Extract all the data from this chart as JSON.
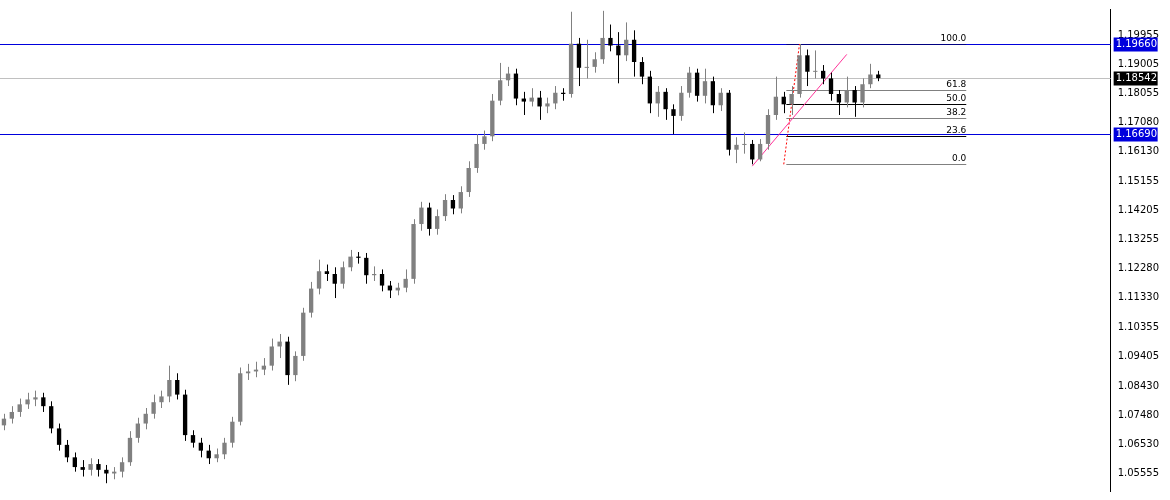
{
  "chart_data": {
    "type": "candlestick",
    "tick_labels": "y",
    "colors": [
      "#808080",
      "#808080",
      "#808080",
      "#808080",
      "#808080",
      "#000000",
      "#000000",
      "#000000",
      "#000000",
      "#000000",
      "#000000",
      "#808080",
      "#000000",
      "#000000",
      "#808080",
      "#808080",
      "#808080",
      "#808080",
      "#808080",
      "#808080",
      "#808080",
      "#808080",
      "#000000",
      "#000000",
      "#000000",
      "#000000",
      "#000000",
      "#808080",
      "#808080",
      "#808080",
      "#808080",
      "#808080",
      "#808080",
      "#808080",
      "#808080",
      "#808080",
      "#000000",
      "#808080",
      "#808080",
      "#808080",
      "#808080",
      "#000000",
      "#000000",
      "#808080",
      "#808080",
      "#000000",
      "#000000",
      "#808080",
      "#000000",
      "#000000",
      "#808080",
      "#808080",
      "#808080",
      "#808080",
      "#000000",
      "#808080",
      "#808080",
      "#000000",
      "#808080",
      "#808080",
      "#808080",
      "#808080",
      "#808080",
      "#808080",
      "#808080",
      "#000000",
      "#000000",
      "#808080",
      "#000000",
      "#808080",
      "#808080",
      "#000000",
      "#808080",
      "#000000",
      "#808080",
      "#808080",
      "#808080",
      "#000000",
      "#000000",
      "#808080",
      "#000000",
      "#000000",
      "#000000",
      "#808080",
      "#000000",
      "#000000",
      "#808080",
      "#808080",
      "#000000",
      "#808080",
      "#000000",
      "#808080",
      "#000000",
      "#808080",
      "#808080",
      "#000000",
      "#808080",
      "#808080",
      "#808080",
      "#000000",
      "#808080",
      "#808080",
      "#000000",
      "#808080",
      "#000000",
      "#000000",
      "#000000",
      "#808080",
      "#000000",
      "#808080",
      "#808080",
      "#000000",
      null,
      null,
      null,
      null,
      null,
      null,
      null,
      null,
      null,
      null,
      null,
      null,
      null,
      null,
      null,
      null,
      null,
      null,
      null,
      null,
      null,
      null,
      null,
      null,
      null,
      null,
      null,
      null,
      null
    ],
    "categories": [
      null,
      null,
      null,
      null,
      null,
      null,
      null,
      null,
      null,
      null,
      null,
      null,
      null,
      null,
      null,
      null,
      null,
      null,
      null,
      null,
      null,
      null,
      null,
      null,
      null,
      null,
      null,
      null,
      null,
      null,
      null,
      null,
      null,
      null,
      null,
      null,
      null,
      null,
      null,
      null,
      null,
      null,
      null,
      null,
      null,
      null,
      null,
      null,
      null,
      null,
      null,
      null,
      null,
      null,
      null,
      null,
      null,
      null,
      null,
      null,
      null,
      null,
      null,
      null,
      null,
      null,
      null,
      null,
      null,
      null,
      null,
      null,
      null,
      null,
      null,
      null,
      null,
      null,
      null,
      null,
      null,
      null,
      null,
      null,
      null,
      null,
      null,
      null,
      null,
      null,
      null,
      null,
      null,
      null,
      null,
      null,
      null,
      null,
      null,
      null,
      null,
      null,
      null,
      null,
      null,
      null,
      null,
      null,
      null,
      null,
      null,
      null,
      null,
      null,
      null,
      null,
      null,
      null,
      null,
      null,
      null,
      null,
      null,
      null,
      null,
      null,
      null,
      null,
      null,
      null,
      null,
      null,
      null,
      null,
      null,
      null,
      null,
      null,
      null,
      null,
      null
    ],
    "ohlc": [
      [
        1.0714,
        1.0752,
        1.0698,
        1.0736
      ],
      [
        1.0736,
        1.0777,
        1.072,
        1.0758
      ],
      [
        1.0758,
        1.0802,
        1.0742,
        1.0783
      ],
      [
        1.0783,
        1.0821,
        1.0768,
        1.0799
      ],
      [
        1.0799,
        1.0828,
        1.0777,
        1.0806
      ],
      [
        1.0806,
        1.0821,
        1.0758,
        1.0777
      ],
      [
        1.0777,
        1.0793,
        1.0688,
        1.0704
      ],
      [
        1.0704,
        1.072,
        1.0631,
        1.065
      ],
      [
        1.065,
        1.0666,
        1.0593,
        1.0609
      ],
      [
        1.0609,
        1.0625,
        1.0562,
        1.0577
      ],
      [
        1.0577,
        1.06,
        1.0546,
        1.0568
      ],
      [
        1.0568,
        1.0606,
        1.0549,
        1.0587
      ],
      [
        1.0587,
        1.0603,
        1.0546,
        1.0568
      ],
      [
        1.0568,
        1.0584,
        1.0524,
        1.0556
      ],
      [
        1.0556,
        1.0577,
        1.0537,
        1.0562
      ],
      [
        1.0562,
        1.0609,
        1.0543,
        1.0593
      ],
      [
        1.0593,
        1.0695,
        1.0581,
        1.0673
      ],
      [
        1.0673,
        1.0739,
        1.0657,
        1.072
      ],
      [
        1.072,
        1.0771,
        1.0701,
        1.0752
      ],
      [
        1.0752,
        1.0815,
        1.0736,
        1.079
      ],
      [
        1.079,
        1.0828,
        1.0771,
        1.0809
      ],
      [
        1.0809,
        1.091,
        1.079,
        1.0863
      ],
      [
        1.0863,
        1.0885,
        1.0799,
        1.0815
      ],
      [
        1.0815,
        1.0831,
        1.0663,
        1.0682
      ],
      [
        1.0682,
        1.0698,
        1.0641,
        1.0657
      ],
      [
        1.0657,
        1.0673,
        1.0609,
        1.0631
      ],
      [
        1.0631,
        1.065,
        1.0587,
        1.0606
      ],
      [
        1.0606,
        1.0638,
        1.0593,
        1.0619
      ],
      [
        1.0619,
        1.0673,
        1.0603,
        1.0657
      ],
      [
        1.0657,
        1.0742,
        1.0641,
        1.0726
      ],
      [
        1.0726,
        1.0904,
        1.0714,
        1.0885
      ],
      [
        1.0885,
        1.0916,
        1.0863,
        1.0891
      ],
      [
        1.0891,
        1.0923,
        1.0872,
        1.0897
      ],
      [
        1.0897,
        1.0935,
        1.0879,
        1.091
      ],
      [
        1.091,
        1.0999,
        1.0894,
        1.0973
      ],
      [
        1.0973,
        1.1014,
        1.0935,
        1.0989
      ],
      [
        1.0989,
        1.1005,
        1.0847,
        1.0879
      ],
      [
        1.0879,
        1.0957,
        1.0859,
        1.0942
      ],
      [
        1.0942,
        1.11,
        1.0926,
        1.1084
      ],
      [
        1.1084,
        1.1185,
        1.1068,
        1.1163
      ],
      [
        1.1163,
        1.1258,
        1.1144,
        1.122
      ],
      [
        1.122,
        1.1242,
        1.1188,
        1.1211
      ],
      [
        1.1211,
        1.1233,
        1.1132,
        1.1179
      ],
      [
        1.1179,
        1.1252,
        1.1163,
        1.1233
      ],
      [
        1.1233,
        1.129,
        1.122,
        1.1268
      ],
      [
        1.1268,
        1.1283,
        1.1245,
        1.1264
      ],
      [
        1.1264,
        1.128,
        1.1179,
        1.1207
      ],
      [
        1.1207,
        1.1236,
        1.1188,
        1.1211
      ],
      [
        1.1211,
        1.1226,
        1.1154,
        1.1173
      ],
      [
        1.1173,
        1.1188,
        1.1132,
        1.1157
      ],
      [
        1.1157,
        1.1182,
        1.1141,
        1.1166
      ],
      [
        1.1166,
        1.1226,
        1.1151,
        1.1195
      ],
      [
        1.1195,
        1.1391,
        1.1179,
        1.1375
      ],
      [
        1.1375,
        1.1448,
        1.1353,
        1.1429
      ],
      [
        1.1429,
        1.1445,
        1.1337,
        1.1359
      ],
      [
        1.1359,
        1.1423,
        1.134,
        1.1401
      ],
      [
        1.1401,
        1.1473,
        1.1385,
        1.1454
      ],
      [
        1.1454,
        1.147,
        1.1407,
        1.1426
      ],
      [
        1.1426,
        1.1499,
        1.141,
        1.148
      ],
      [
        1.148,
        1.1581,
        1.1464,
        1.1559
      ],
      [
        1.1559,
        1.167,
        1.1543,
        1.1638
      ],
      [
        1.1638,
        1.1682,
        1.1619,
        1.1663
      ],
      [
        1.1663,
        1.1802,
        1.1647,
        1.178
      ],
      [
        1.178,
        1.1904,
        1.1765,
        1.1847
      ],
      [
        1.1847,
        1.1891,
        1.1828,
        1.1869
      ],
      [
        1.1869,
        1.1885,
        1.1765,
        1.1787
      ],
      [
        1.1787,
        1.1809,
        1.1733,
        1.1777
      ],
      [
        1.1777,
        1.1821,
        1.1761,
        1.179
      ],
      [
        1.179,
        1.1812,
        1.1717,
        1.1761
      ],
      [
        1.1761,
        1.179,
        1.1739,
        1.1771
      ],
      [
        1.1771,
        1.1828,
        1.1752,
        1.1806
      ],
      [
        1.1806,
        1.1821,
        1.178,
        1.1802
      ],
      [
        1.1802,
        1.2072,
        1.179,
        1.1967
      ],
      [
        1.1967,
        1.1986,
        1.1828,
        1.1888
      ],
      [
        1.1888,
        1.198,
        1.1853,
        1.1891
      ],
      [
        1.1891,
        1.1939,
        1.1872,
        1.1916
      ],
      [
        1.1916,
        1.2075,
        1.1901,
        1.1986
      ],
      [
        1.1986,
        1.203,
        1.1942,
        1.1961
      ],
      [
        1.1961,
        1.2005,
        1.1837,
        1.1929
      ],
      [
        1.1929,
        1.2037,
        1.191,
        1.198
      ],
      [
        1.198,
        1.2011,
        1.1859,
        1.1907
      ],
      [
        1.1907,
        1.1923,
        1.1834,
        1.1859
      ],
      [
        1.1859,
        1.1878,
        1.1739,
        1.1771
      ],
      [
        1.1771,
        1.1828,
        1.1727,
        1.1809
      ],
      [
        1.1809,
        1.1821,
        1.1717,
        1.1752
      ],
      [
        1.1752,
        1.1768,
        1.167,
        1.173
      ],
      [
        1.173,
        1.1828,
        1.1714,
        1.1806
      ],
      [
        1.1806,
        1.1891,
        1.179,
        1.1872
      ],
      [
        1.1872,
        1.1885,
        1.1777,
        1.1796
      ],
      [
        1.1796,
        1.1885,
        1.1771,
        1.1844
      ],
      [
        1.1844,
        1.1859,
        1.1739,
        1.1765
      ],
      [
        1.1765,
        1.1821,
        1.1746,
        1.1806
      ],
      [
        1.1806,
        1.1815,
        1.16,
        1.1619
      ],
      [
        1.1619,
        1.166,
        1.1575,
        1.1635
      ],
      [
        1.1635,
        1.1676,
        1.1606,
        1.1638
      ],
      [
        1.1638,
        1.1651,
        1.1571,
        1.1587
      ],
      [
        1.1587,
        1.1654,
        1.1581,
        1.1638
      ],
      [
        1.1638,
        1.1752,
        1.1619,
        1.1733
      ],
      [
        1.1733,
        1.1859,
        1.1717,
        1.1793
      ],
      [
        1.1793,
        1.1809,
        1.1739,
        1.1768
      ],
      [
        1.1768,
        1.1828,
        1.1733,
        1.1802
      ],
      [
        1.1802,
        1.1966,
        1.179,
        1.1929
      ],
      [
        1.1929,
        1.1948,
        1.1828,
        1.1875
      ],
      [
        1.1875,
        1.1945,
        1.1853,
        1.1878
      ],
      [
        1.1878,
        1.1897,
        1.1834,
        1.1853
      ],
      [
        1.1853,
        1.1872,
        1.178,
        1.1802
      ],
      [
        1.1802,
        1.1815,
        1.1733,
        1.1774
      ],
      [
        1.1774,
        1.1859,
        1.1758,
        1.1815
      ],
      [
        1.1815,
        1.1828,
        1.1727,
        1.1774
      ],
      [
        1.1774,
        1.1853,
        1.1758,
        1.1834
      ],
      [
        1.1834,
        1.1901,
        1.1821,
        1.1866
      ],
      [
        1.1866,
        1.1878,
        1.1844,
        1.1854
      ],
      null,
      null,
      null,
      null,
      null,
      null,
      null,
      null,
      null,
      null,
      null,
      null,
      null,
      null,
      null,
      null,
      null,
      null,
      null,
      null,
      null,
      null,
      null,
      null,
      null,
      null,
      null,
      null,
      null
    ],
    "series": [
      {
        "type": "line",
        "color": "#ff3399",
        "line_style": "solid",
        "values": [
          null,
          null,
          null,
          null,
          null,
          null,
          null,
          null,
          null,
          null,
          null,
          null,
          null,
          null,
          null,
          null,
          null,
          null,
          null,
          null,
          null,
          null,
          null,
          null,
          null,
          null,
          null,
          null,
          null,
          null,
          null,
          null,
          null,
          null,
          null,
          null,
          null,
          null,
          null,
          null,
          null,
          null,
          null,
          null,
          null,
          null,
          null,
          null,
          null,
          null,
          null,
          null,
          null,
          null,
          null,
          null,
          null,
          null,
          null,
          null,
          null,
          null,
          null,
          null,
          null,
          null,
          null,
          null,
          null,
          null,
          null,
          null,
          null,
          null,
          null,
          null,
          null,
          null,
          null,
          null,
          null,
          null,
          null,
          null,
          null,
          null,
          null,
          null,
          null,
          null,
          null,
          null,
          null,
          null,
          null,
          1.1565,
          null,
          null,
          null,
          null,
          null,
          null,
          null,
          null,
          null,
          null,
          null,
          1.1932,
          null,
          null,
          null,
          null,
          null,
          null,
          null,
          null,
          null,
          null,
          null,
          null,
          null,
          null,
          null,
          null,
          null,
          null,
          null,
          null,
          null,
          null,
          null,
          null,
          null,
          null,
          null,
          null,
          null,
          null,
          null,
          null,
          null
        ]
      },
      {
        "type": "line",
        "color": "#ff0000",
        "line_style": "dotted",
        "values": [
          null,
          null,
          null,
          null,
          null,
          null,
          null,
          null,
          null,
          null,
          null,
          null,
          null,
          null,
          null,
          null,
          null,
          null,
          null,
          null,
          null,
          null,
          null,
          null,
          null,
          null,
          null,
          null,
          null,
          null,
          null,
          null,
          null,
          null,
          null,
          null,
          null,
          null,
          null,
          null,
          null,
          null,
          null,
          null,
          null,
          null,
          null,
          null,
          null,
          null,
          null,
          null,
          null,
          null,
          null,
          null,
          null,
          null,
          null,
          null,
          null,
          null,
          null,
          null,
          null,
          null,
          null,
          null,
          null,
          null,
          null,
          null,
          null,
          null,
          null,
          null,
          null,
          null,
          null,
          null,
          null,
          null,
          null,
          null,
          null,
          null,
          null,
          null,
          null,
          null,
          null,
          null,
          null,
          null,
          null,
          null,
          null,
          null,
          null,
          1.1571,
          null,
          1.1966,
          null,
          null,
          null,
          null,
          null,
          null,
          null,
          null,
          null,
          null,
          null,
          null,
          null,
          null,
          null,
          null,
          null,
          null,
          null,
          null,
          null,
          null,
          null,
          null,
          null,
          null,
          null,
          null,
          null,
          null,
          null,
          null,
          null,
          null,
          null,
          null,
          null,
          null,
          null
        ]
      }
    ],
    "ylim": [
      1.04985,
      1.2081
    ],
    "yticks": [
      1.19955,
      1.19005,
      1.18055,
      {
        "value": 1.1708,
        "label": "1.17080"
      },
      {
        "value": 1.1613,
        "label": "1.16130"
      },
      1.15155,
      1.14205,
      1.13255,
      {
        "value": 1.1228,
        "label": "1.12280"
      },
      {
        "value": 1.1133,
        "label": "1.11330"
      },
      1.10355,
      1.09405,
      {
        "value": 1.0843,
        "label": "1.08430"
      },
      {
        "value": 1.0748,
        "label": "1.07480"
      },
      {
        "value": 1.0653,
        "label": "1.06530"
      },
      1.05555
    ],
    "ref_lines": [
      {
        "axis": "y",
        "value": 1.1966,
        "label": "1.19660",
        "color": "#0000dd"
      },
      {
        "axis": "y",
        "value": 1.18542,
        "label": "1.18542",
        "color": "#c0c0c0"
      },
      {
        "axis": "y",
        "value": 1.1669,
        "label": "1.16690",
        "color": "#0000dd"
      },
      {
        "axis": "y",
        "value": 1.1966,
        "color": "#000080"
      },
      {
        "axis": "y",
        "value": 1.1815,
        "color": "#808080"
      },
      {
        "axis": "y",
        "value": 1.1769,
        "color": "#000000"
      },
      {
        "axis": "y",
        "value": 1.1722,
        "color": "#808080"
      },
      {
        "axis": "y",
        "value": 1.1664,
        "color": "#000000"
      },
      {
        "axis": "y",
        "value": 1.1571,
        "color": "#808080"
      }
    ],
    "annotations": [
      {
        "text": "100.0",
        "y": 1.1966
      },
      {
        "text": "61.8",
        "y": 1.1815
      },
      {
        "text": "50.0",
        "y": 1.1769
      },
      {
        "text": "38.2",
        "y": 1.1722
      },
      {
        "text": "23.6",
        "y": 1.1664
      },
      {
        "text": "0.0",
        "y": 1.1571
      }
    ]
  }
}
